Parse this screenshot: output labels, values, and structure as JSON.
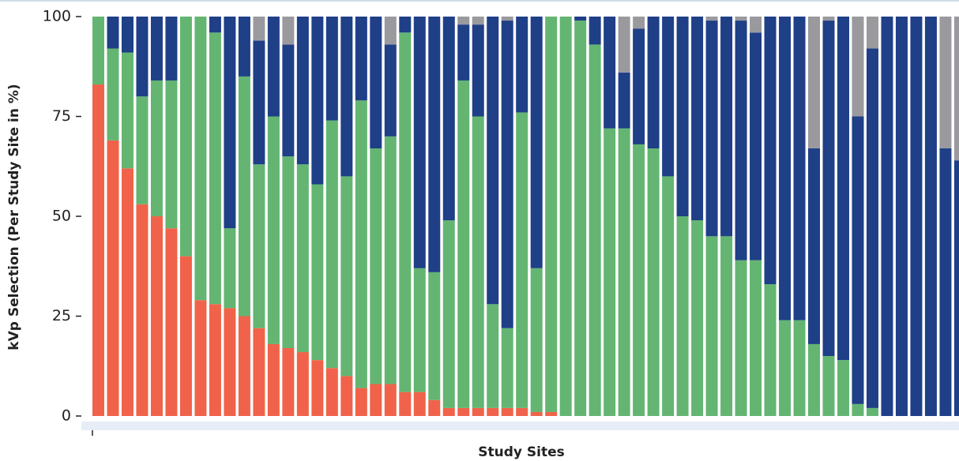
{
  "chart_data": {
    "type": "stacked-bar",
    "y_label": "kVp Selection (Per Study Site in %)",
    "x_label": "Study Sites",
    "ylim": [
      0,
      100
    ],
    "yticks": [
      0,
      25,
      50,
      75,
      100
    ],
    "series": [
      {
        "color": "#f0634a",
        "values": [
          83,
          69,
          62,
          53,
          50,
          47,
          40,
          29,
          28,
          27,
          25,
          22,
          18,
          17,
          16,
          14,
          12,
          10,
          7,
          8,
          8,
          6,
          6,
          4,
          2,
          2,
          2,
          2,
          2,
          2,
          1,
          1,
          0,
          0,
          0,
          0,
          0,
          0,
          0,
          0,
          0,
          0,
          0,
          0,
          0,
          0,
          0,
          0,
          0,
          0,
          0,
          0,
          0,
          0,
          0,
          0,
          0,
          0,
          0,
          0
        ]
      },
      {
        "color": "#64b572",
        "values": [
          17,
          23,
          29,
          27,
          34,
          37,
          60,
          71,
          68,
          20,
          60,
          41,
          57,
          48,
          47,
          44,
          62,
          50,
          72,
          59,
          62,
          90,
          31,
          32,
          47,
          82,
          73,
          26,
          20,
          74,
          36,
          99,
          100,
          99,
          93,
          72,
          72,
          68,
          67,
          60,
          50,
          49,
          45,
          45,
          39,
          39,
          33,
          24,
          24,
          18,
          15,
          14,
          3,
          2,
          0,
          0,
          0,
          0,
          0,
          0
        ]
      },
      {
        "color": "#1f3f87",
        "values": [
          0,
          8,
          9,
          20,
          16,
          16,
          0,
          0,
          4,
          53,
          15,
          31,
          25,
          28,
          37,
          42,
          26,
          40,
          21,
          33,
          23,
          4,
          63,
          64,
          51,
          14,
          23,
          72,
          77,
          24,
          63,
          0,
          0,
          1,
          7,
          28,
          14,
          29,
          33,
          40,
          50,
          51,
          54,
          55,
          60,
          57,
          67,
          76,
          76,
          49,
          84,
          86,
          72,
          90,
          100,
          100,
          100,
          100,
          67,
          64
        ]
      },
      {
        "color": "#9a9a9e",
        "values": [
          0,
          0,
          0,
          0,
          0,
          0,
          0,
          0,
          0,
          0,
          0,
          6,
          0,
          7,
          0,
          0,
          0,
          0,
          0,
          0,
          7,
          0,
          0,
          0,
          0,
          2,
          2,
          0,
          1,
          0,
          0,
          0,
          0,
          0,
          0,
          0,
          14,
          3,
          0,
          0,
          0,
          0,
          1,
          0,
          1,
          4,
          0,
          0,
          0,
          33,
          1,
          0,
          25,
          8,
          0,
          0,
          0,
          0,
          33,
          36
        ]
      }
    ]
  }
}
